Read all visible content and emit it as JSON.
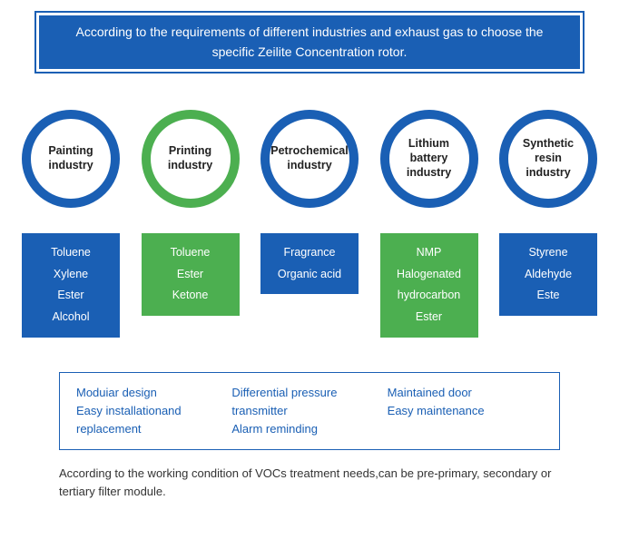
{
  "header": {
    "text": "According to the requirements of different industries and exhaust gas to choose the specific Zeilite Concentration rotor."
  },
  "colors": {
    "blue": "#1a5fb4",
    "green": "#4caf50",
    "circle_border_width": 10
  },
  "industries": [
    {
      "name": "Painting industry",
      "circle_border_color": "#1a5fb4",
      "box_bg": "#1a5fb4",
      "chemicals": [
        "Toluene",
        "Xylene",
        "Ester",
        "Alcohol"
      ]
    },
    {
      "name": "Printing industry",
      "circle_border_color": "#4caf50",
      "box_bg": "#4caf50",
      "chemicals": [
        "Toluene",
        "Ester",
        "Ketone"
      ]
    },
    {
      "name": "Petrochemical industry",
      "circle_border_color": "#1a5fb4",
      "box_bg": "#1a5fb4",
      "chemicals": [
        "Fragrance",
        "Organic acid"
      ]
    },
    {
      "name": "Lithium battery industry",
      "circle_border_color": "#1a5fb4",
      "box_bg": "#4caf50",
      "chemicals": [
        "NMP",
        "Halogenated",
        "hydrocarbon",
        "Ester"
      ]
    },
    {
      "name": "Synthetic resin industry",
      "circle_border_color": "#1a5fb4",
      "box_bg": "#1a5fb4",
      "chemicals": [
        "Styrene",
        "Aldehyde",
        "Este"
      ]
    }
  ],
  "features": {
    "col1": [
      "Moduiar  design",
      "Easy  installationand",
      "replacement"
    ],
    "col2": [
      "Differential pressure",
      "transmitter",
      "Alarm reminding"
    ],
    "col3": [
      "Maintained door",
      "Easy maintenance"
    ]
  },
  "footnote": "According to the working condition of VOCs treatment needs,can be pre-primary, secondary or tertiary filter module."
}
